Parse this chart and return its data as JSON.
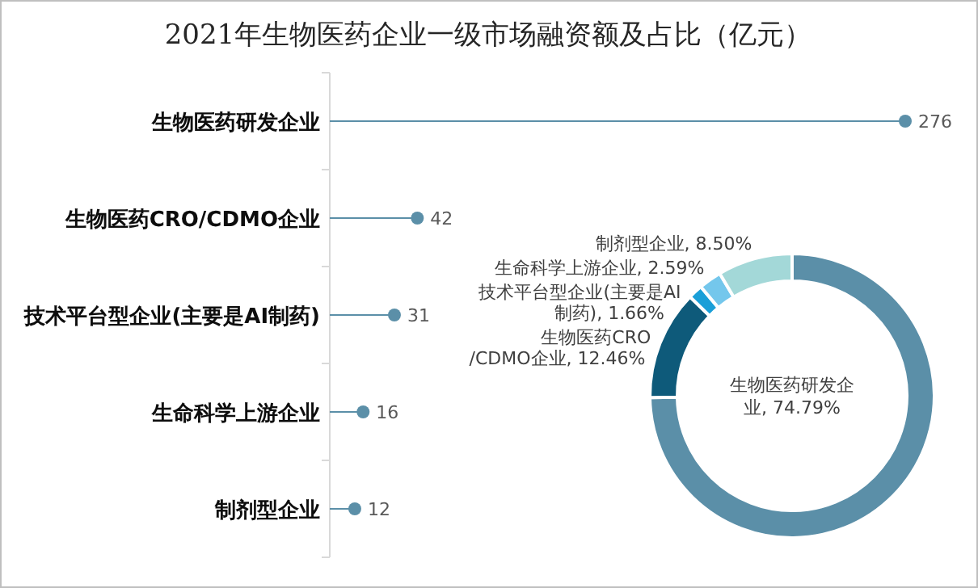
{
  "chart_data": [
    {
      "type": "lollipop",
      "title": "2021年生物医药企业一级市场融资额及占比（亿元）",
      "categories": [
        "生物医药研发企业",
        "生物医药CRO/CDMO企业",
        "技术平台型企业(主要是AI制药)",
        "生命科学上游企业",
        "制剂型企业"
      ],
      "values": [
        276,
        42,
        31,
        16,
        12
      ],
      "color": "#5b8fa8",
      "orientation": "horizontal",
      "marker": "circle",
      "data_labels": true
    },
    {
      "type": "donut",
      "categories": [
        "生物医药研发企业",
        "生物医药CRO/CDMO企业",
        "技术平台型企业(主要是AI制药)",
        "生命科学上游企业",
        "制剂型企业"
      ],
      "values": [
        74.79,
        12.46,
        1.66,
        2.59,
        8.5
      ],
      "value_labels": [
        "74.79%",
        "12.46%",
        "1.66%",
        "2.59%",
        "8.50%"
      ],
      "colors": [
        "#5b8fa8",
        "#0e5a7a",
        "#1a9fd8",
        "#74c7ec",
        "#a3d8d8"
      ]
    }
  ]
}
